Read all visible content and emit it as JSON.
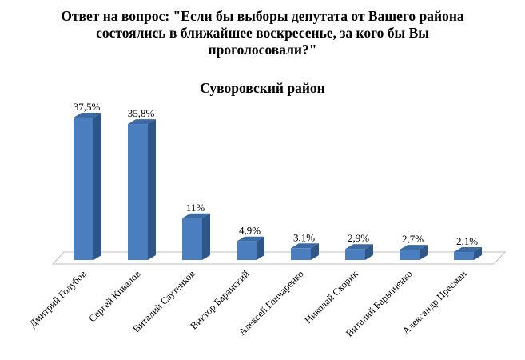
{
  "chart_data": {
    "type": "bar",
    "title_lines": [
      "Ответ на вопрос: \"Если бы выборы депутата от Вашего района",
      "состоялись в ближайшее воскресенье, за кого бы Вы",
      "проголосовали?\""
    ],
    "subtitle": "Суворовский район",
    "categories": [
      "Дмитрий Голубов",
      "Сергей Кивалов",
      "Виталий Саутенков",
      "Виктор Баранский",
      "Алексей Гончаренко",
      "Николай Скорик",
      "Виталий Барвиненко",
      "Александр Пресман"
    ],
    "values": [
      37.5,
      35.8,
      11,
      4.9,
      3.1,
      2.9,
      2.7,
      2.1
    ],
    "data_labels": [
      "37,5%",
      "35,8%",
      "11%",
      "4,9%",
      "3,1%",
      "2,9%",
      "2,7%",
      "2,1%"
    ],
    "xlabel": "",
    "ylabel": "",
    "ylim": [
      0,
      40
    ],
    "grid": false,
    "legend": "none",
    "colors": {
      "bar_front": "#4a7ebf",
      "bar_side": "#2f5689",
      "bar_top": "#3d6aa3",
      "floor": "#ffffff",
      "floor_edge": "#bfbfbf"
    }
  }
}
